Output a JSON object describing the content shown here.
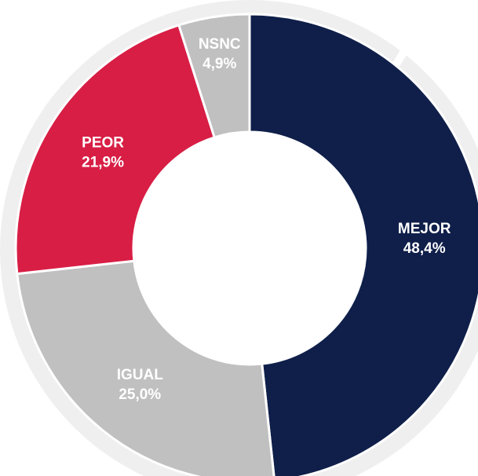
{
  "chart_data": {
    "type": "donut",
    "categories": [
      "MEJOR",
      "IGUAL",
      "PEOR",
      "NSNC"
    ],
    "values": [
      48.4,
      25.0,
      21.9,
      4.9
    ],
    "value_labels": [
      "48,4%",
      "25,0%",
      "21,9%",
      "4,9%"
    ],
    "colors": [
      "#0f1f4a",
      "#c0c0c0",
      "#d81e45",
      "#c0c0c0"
    ]
  }
}
